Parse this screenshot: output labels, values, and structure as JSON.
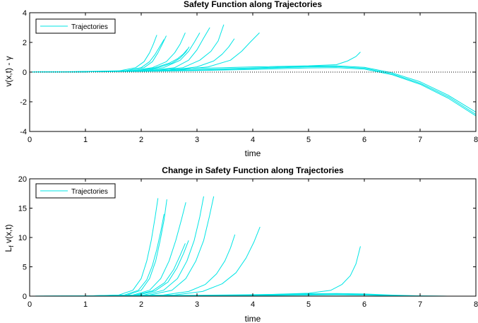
{
  "chart_data": [
    {
      "type": "line",
      "title": "Safety Function along Trajectories",
      "xlabel": "time",
      "ylabel": "v(x,t) - γ",
      "xlim": [
        0,
        8
      ],
      "ylim": [
        -4,
        4
      ],
      "xticks": [
        "0",
        "1",
        "2",
        "3",
        "4",
        "5",
        "6",
        "7",
        "8"
      ],
      "yticks": [
        "-4",
        "-2",
        "0",
        "2",
        "4"
      ],
      "legend": {
        "position": "top-left",
        "entries": [
          "Trajectories"
        ]
      },
      "reference_line": {
        "y": 0,
        "style": "dotted"
      },
      "colors": {
        "series": "#00e5e5",
        "axis": "#000000",
        "reference": "#000000"
      },
      "series": [
        {
          "x": [
            0,
            1,
            1.6,
            1.9,
            2.05,
            2.15,
            2.22,
            2.28
          ],
          "y": [
            0,
            0.02,
            0.08,
            0.3,
            0.7,
            1.3,
            1.9,
            2.5
          ]
        },
        {
          "x": [
            0,
            1,
            1.7,
            2.0,
            2.15,
            2.25,
            2.33,
            2.41
          ],
          "y": [
            0,
            0.02,
            0.08,
            0.3,
            0.7,
            1.2,
            1.7,
            2.2
          ]
        },
        {
          "x": [
            0,
            1,
            1.7,
            2.05,
            2.2,
            2.3,
            2.38,
            2.45
          ],
          "y": [
            0,
            0.02,
            0.08,
            0.3,
            0.7,
            1.3,
            1.9,
            2.45
          ]
        },
        {
          "x": [
            0,
            1,
            1.8,
            2.2,
            2.45,
            2.6,
            2.7,
            2.79
          ],
          "y": [
            0,
            0.02,
            0.08,
            0.3,
            0.7,
            1.3,
            1.9,
            2.65
          ]
        },
        {
          "x": [
            0,
            1,
            1.9,
            2.25,
            2.5,
            2.65,
            2.75,
            2.83
          ],
          "y": [
            0,
            0.02,
            0.08,
            0.3,
            0.6,
            0.9,
            1.2,
            1.55
          ]
        },
        {
          "x": [
            0,
            1,
            1.9,
            2.3,
            2.55,
            2.7,
            2.8,
            2.86
          ],
          "y": [
            0,
            0.02,
            0.08,
            0.3,
            0.6,
            0.95,
            1.35,
            1.7
          ]
        },
        {
          "x": [
            0,
            1,
            2.0,
            2.4,
            2.7,
            2.85,
            2.95,
            3.05
          ],
          "y": [
            0,
            0.02,
            0.08,
            0.3,
            0.8,
            1.4,
            2.0,
            2.65
          ]
        },
        {
          "x": [
            0,
            1,
            2.1,
            2.6,
            2.85,
            3.0,
            3.12,
            3.23
          ],
          "y": [
            0,
            0.02,
            0.08,
            0.3,
            0.8,
            1.5,
            2.3,
            3.0
          ]
        },
        {
          "x": [
            0,
            1,
            2.2,
            2.75,
            3.05,
            3.25,
            3.38,
            3.48
          ],
          "y": [
            0,
            0.02,
            0.08,
            0.3,
            0.8,
            1.4,
            2.1,
            3.2
          ]
        },
        {
          "x": [
            0,
            1,
            2.5,
            3.0,
            3.3,
            3.45,
            3.57,
            3.67
          ],
          "y": [
            0,
            0.03,
            0.12,
            0.35,
            0.75,
            1.2,
            1.7,
            2.25
          ]
        },
        {
          "x": [
            0,
            1,
            2.6,
            3.2,
            3.6,
            3.8,
            3.95,
            4.12
          ],
          "y": [
            0,
            0.03,
            0.12,
            0.35,
            0.8,
            1.4,
            2.0,
            2.65
          ]
        },
        {
          "x": [
            0,
            1,
            2,
            3,
            4,
            5,
            5.5,
            5.7,
            5.85,
            5.93
          ],
          "y": [
            0,
            0.04,
            0.12,
            0.25,
            0.35,
            0.42,
            0.5,
            0.75,
            1.05,
            1.35
          ]
        },
        {
          "x": [
            0,
            1,
            2,
            3,
            4,
            5,
            5.5,
            6,
            6.5,
            7,
            7.5,
            8
          ],
          "y": [
            0,
            0.03,
            0.08,
            0.16,
            0.28,
            0.4,
            0.42,
            0.32,
            -0.05,
            -0.65,
            -1.55,
            -2.7
          ]
        },
        {
          "x": [
            0,
            1,
            2,
            3,
            4,
            5,
            5.5,
            6,
            6.5,
            7,
            7.5,
            8
          ],
          "y": [
            0,
            0.03,
            0.07,
            0.14,
            0.24,
            0.35,
            0.37,
            0.26,
            -0.12,
            -0.75,
            -1.65,
            -2.85
          ]
        },
        {
          "x": [
            0,
            1,
            2,
            3,
            4,
            5,
            5.5,
            6,
            6.5,
            7,
            7.5,
            8
          ],
          "y": [
            0,
            0.02,
            0.05,
            0.1,
            0.18,
            0.28,
            0.3,
            0.2,
            -0.18,
            -0.82,
            -1.75,
            -2.95
          ]
        }
      ]
    },
    {
      "type": "line",
      "title": "Change in Safety Function along Trajectories",
      "xlabel": "time",
      "ylabel": "L_f v(x,t)",
      "xlim": [
        0,
        8
      ],
      "ylim": [
        0,
        20
      ],
      "xticks": [
        "0",
        "1",
        "2",
        "3",
        "4",
        "5",
        "6",
        "7",
        "8"
      ],
      "yticks": [
        "0",
        "5",
        "10",
        "15",
        "20"
      ],
      "legend": {
        "position": "top-left",
        "entries": [
          "Trajectories"
        ]
      },
      "reference_line": {
        "y": 0,
        "style": "dotted"
      },
      "colors": {
        "series": "#00e5e5",
        "axis": "#000000",
        "reference": "#000000"
      },
      "series": [
        {
          "x": [
            0,
            1,
            1.6,
            1.85,
            2.0,
            2.1,
            2.18,
            2.25,
            2.3
          ],
          "y": [
            0,
            0.02,
            0.2,
            1.0,
            3.0,
            6.0,
            9.5,
            13.5,
            16.7
          ]
        },
        {
          "x": [
            0,
            1,
            1.7,
            1.95,
            2.1,
            2.2,
            2.28,
            2.35,
            2.41
          ],
          "y": [
            0,
            0.02,
            0.2,
            1.0,
            2.8,
            5.2,
            8.0,
            11.0,
            14.0
          ]
        },
        {
          "x": [
            0,
            1,
            1.75,
            2.0,
            2.15,
            2.26,
            2.34,
            2.41,
            2.46
          ],
          "y": [
            0,
            0.02,
            0.2,
            1.0,
            3.0,
            6.0,
            9.5,
            13.0,
            16.5
          ]
        },
        {
          "x": [
            0,
            1,
            1.85,
            2.15,
            2.35,
            2.5,
            2.62,
            2.72,
            2.8
          ],
          "y": [
            0,
            0.02,
            0.2,
            1.0,
            3.0,
            6.0,
            9.5,
            13.0,
            16.0
          ]
        },
        {
          "x": [
            0,
            1,
            1.9,
            2.2,
            2.42,
            2.58,
            2.7,
            2.79
          ],
          "y": [
            0,
            0.02,
            0.2,
            0.9,
            2.3,
            4.5,
            7.0,
            9.0
          ]
        },
        {
          "x": [
            0,
            1,
            1.95,
            2.25,
            2.48,
            2.64,
            2.76,
            2.85
          ],
          "y": [
            0,
            0.02,
            0.2,
            0.9,
            2.4,
            4.8,
            7.3,
            9.5
          ]
        },
        {
          "x": [
            0,
            1,
            2.05,
            2.4,
            2.65,
            2.82,
            2.95,
            3.05,
            3.12
          ],
          "y": [
            0,
            0.02,
            0.2,
            1.0,
            3.0,
            6.0,
            9.5,
            13.5,
            17.0
          ]
        },
        {
          "x": [
            0,
            1,
            2.15,
            2.55,
            2.8,
            2.98,
            3.12,
            3.22,
            3.3
          ],
          "y": [
            0,
            0.02,
            0.2,
            1.0,
            3.0,
            6.0,
            9.5,
            13.5,
            17.0
          ]
        },
        {
          "x": [
            0,
            1,
            2.4,
            2.85,
            3.15,
            3.35,
            3.5,
            3.6,
            3.68
          ],
          "y": [
            0,
            0.02,
            0.2,
            0.8,
            2.0,
            3.8,
            6.0,
            8.2,
            10.5
          ]
        },
        {
          "x": [
            0,
            1,
            2.6,
            3.1,
            3.45,
            3.7,
            3.88,
            4.02,
            4.13
          ],
          "y": [
            0,
            0.02,
            0.2,
            0.8,
            2.1,
            4.0,
            6.5,
            9.2,
            11.8
          ]
        },
        {
          "x": [
            0,
            1,
            2,
            3,
            4,
            5,
            5.4,
            5.6,
            5.75,
            5.85,
            5.93
          ],
          "y": [
            0,
            0.02,
            0.05,
            0.1,
            0.2,
            0.5,
            1.0,
            2.0,
            3.5,
            5.5,
            8.5
          ]
        },
        {
          "x": [
            0,
            1,
            2,
            3,
            4,
            5,
            5.5,
            6,
            6.5,
            7,
            7.5,
            8
          ],
          "y": [
            0,
            0.03,
            0.08,
            0.15,
            0.25,
            0.4,
            0.45,
            0.38,
            0.18,
            0.04,
            0,
            0
          ]
        },
        {
          "x": [
            0,
            1,
            2,
            3,
            4,
            5,
            5.5,
            6,
            6.5,
            7,
            7.5,
            8
          ],
          "y": [
            0,
            0.02,
            0.06,
            0.1,
            0.18,
            0.3,
            0.35,
            0.28,
            0.12,
            0.03,
            0,
            0
          ]
        },
        {
          "x": [
            0,
            1,
            2,
            3,
            4,
            5,
            5.5,
            6,
            6.5,
            7,
            7.5,
            8
          ],
          "y": [
            0,
            0.01,
            0.03,
            0.05,
            0.1,
            0.18,
            0.22,
            0.18,
            0.08,
            0.02,
            0,
            0
          ]
        }
      ]
    }
  ]
}
